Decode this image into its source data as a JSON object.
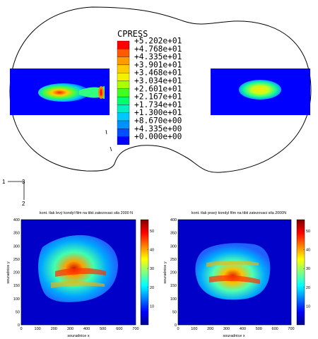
{
  "fea_contour": {
    "legend_title": "CPRESS",
    "legend_values": [
      "+5.202e+01",
      "+4.768e+01",
      "+4.335e+01",
      "+3.901e+01",
      "+3.468e+01",
      "+3.034e+01",
      "+2.601e+01",
      "+2.167e+01",
      "+1.734e+01",
      "+1.300e+01",
      "+8.670e+00",
      "+4.335e+00",
      "+0.000e+00"
    ],
    "legend_colors": [
      "#ff0000",
      "#ff5a00",
      "#ff9a00",
      "#ffcc00",
      "#f2f200",
      "#a8ff00",
      "#40ff20",
      "#00ff70",
      "#00f0c0",
      "#00c8ff",
      "#0090ff",
      "#0050ff",
      "#0000ff"
    ],
    "axis_triad": {
      "h": "1",
      "v": "2",
      "corner": "3"
    }
  },
  "plots": [
    {
      "title": "kont. tlak levý kondyl film na tibii zatezovaci sila 2000 N",
      "xlabel": "souradnice x",
      "ylabel": "souradnice y",
      "xticks": [
        "0",
        "100",
        "200",
        "300",
        "400",
        "500",
        "600",
        "700"
      ],
      "yticks": [
        "0",
        "50",
        "100",
        "150",
        "200",
        "250",
        "300",
        "350",
        "400"
      ],
      "cticks": [
        "10",
        "20",
        "30",
        "40",
        "50"
      ]
    },
    {
      "title": "kont. tlak pravý kondyl film na tibii zatezovaci sila 2000N",
      "xlabel": "souradnice x",
      "ylabel": "souradnice y",
      "xticks": [
        "0",
        "100",
        "200",
        "300",
        "400",
        "500",
        "600",
        "700"
      ],
      "yticks": [
        "0",
        "50",
        "100",
        "150",
        "200",
        "250",
        "300",
        "350",
        "400"
      ],
      "cticks": [
        "10",
        "20",
        "30",
        "40",
        "50"
      ]
    }
  ]
}
